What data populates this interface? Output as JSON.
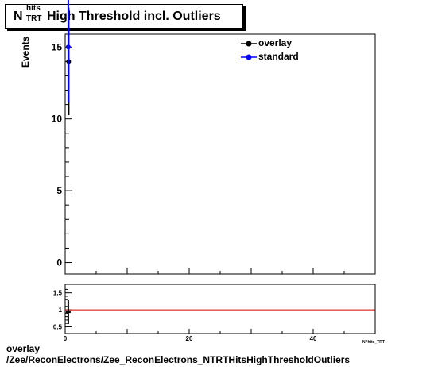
{
  "title": {
    "symbol": "N",
    "superscript": "hits",
    "subscript": "TRT",
    "text": "High Threshold incl. Outliers"
  },
  "chart_data": [
    {
      "type": "scatter",
      "ylabel": "Events",
      "xlim": [
        0,
        50
      ],
      "ylim": [
        -0.8,
        15.9
      ],
      "yticks": [
        0,
        5,
        10,
        15
      ],
      "legend_position": "top-right",
      "grid": false,
      "series": [
        {
          "name": "overlay",
          "color": "#000000",
          "points": [
            {
              "x": 0.5,
              "y": 14,
              "err": 3.74
            }
          ]
        },
        {
          "name": "standard",
          "color": "#0000ff",
          "points": [
            {
              "x": 0.5,
              "y": 15,
              "err": 3.87
            }
          ]
        }
      ]
    },
    {
      "type": "line",
      "xlim": [
        0,
        50
      ],
      "ylim": [
        0.3,
        1.75
      ],
      "yticks": [
        0.5,
        1,
        1.5
      ],
      "xticks": [
        0,
        20,
        40
      ],
      "reference_line": {
        "y": 1,
        "color": "#cc0000"
      },
      "points": [
        {
          "x": 0.5,
          "y": 0.93,
          "err": 0.35
        }
      ]
    }
  ],
  "xaxis_title": "N^hits_TRT",
  "footer": {
    "line1": "overlay",
    "line2": "/Zee/ReconElectrons/Zee_ReconElectrons_NTRTHitsHighThresholdOutliers"
  }
}
